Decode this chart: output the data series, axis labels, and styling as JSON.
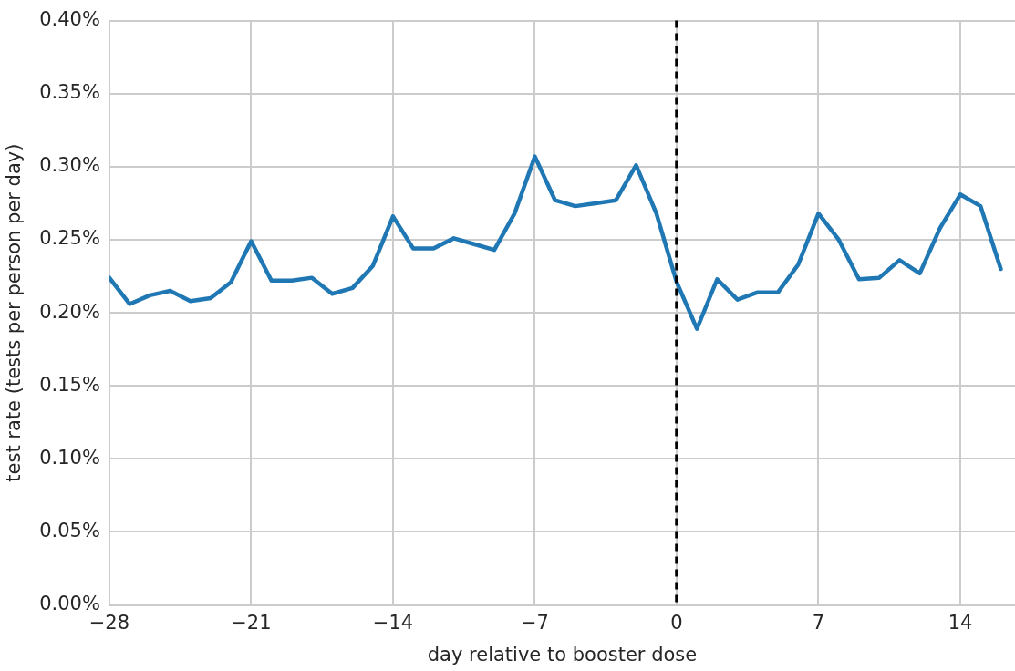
{
  "chart_data": {
    "type": "line",
    "xlabel": "day relative to booster dose",
    "ylabel": "test rate (tests per person per day)",
    "x": [
      -28,
      -27,
      -26,
      -25,
      -24,
      -23,
      -22,
      -21,
      -20,
      -19,
      -18,
      -17,
      -16,
      -15,
      -14,
      -13,
      -12,
      -11,
      -10,
      -9,
      -8,
      -7,
      -6,
      -5,
      -4,
      -3,
      -2,
      -1,
      0,
      1,
      2,
      3,
      4,
      5,
      6,
      7,
      8,
      9,
      10,
      11,
      12,
      13,
      14,
      15,
      16
    ],
    "series": [
      {
        "color": "#1f77b4",
        "values": [
          0.224,
          0.206,
          0.212,
          0.215,
          0.208,
          0.21,
          0.221,
          0.249,
          0.222,
          0.222,
          0.224,
          0.213,
          0.217,
          0.232,
          0.266,
          0.244,
          0.244,
          0.251,
          0.247,
          0.243,
          0.268,
          0.307,
          0.277,
          0.273,
          0.275,
          0.277,
          0.301,
          0.268,
          0.221,
          0.189,
          0.223,
          0.209,
          0.214,
          0.214,
          0.233,
          0.268,
          0.25,
          0.223,
          0.224,
          0.236,
          0.227,
          0.258,
          0.281,
          0.273,
          0.23
        ]
      }
    ],
    "xlim": [
      -28,
      16.7
    ],
    "xticks": [
      {
        "value": -28,
        "label": "−28"
      },
      {
        "value": -21,
        "label": "−21"
      },
      {
        "value": -14,
        "label": "−14"
      },
      {
        "value": -7,
        "label": "−7"
      },
      0,
      7,
      14
    ],
    "ylim": [
      0,
      0.4
    ],
    "yticks": [
      {
        "value": 0,
        "label": "0.00%"
      },
      {
        "value": 0.05,
        "label": "0.05%"
      },
      {
        "value": 0.1,
        "label": "0.10%"
      },
      {
        "value": 0.15,
        "label": "0.15%"
      },
      {
        "value": 0.2,
        "label": "0.20%"
      },
      {
        "value": 0.25,
        "label": "0.25%"
      },
      {
        "value": 0.3,
        "label": "0.30%"
      },
      {
        "value": 0.35,
        "label": "0.35%"
      },
      {
        "value": 0.4,
        "label": "0.40%"
      }
    ],
    "ref_lines": [
      {
        "axis": "x",
        "value": 0,
        "color": "#000000",
        "line_style": "dashed"
      }
    ],
    "grid": true,
    "legend": false,
    "marker": "none",
    "line_style": "solid"
  }
}
